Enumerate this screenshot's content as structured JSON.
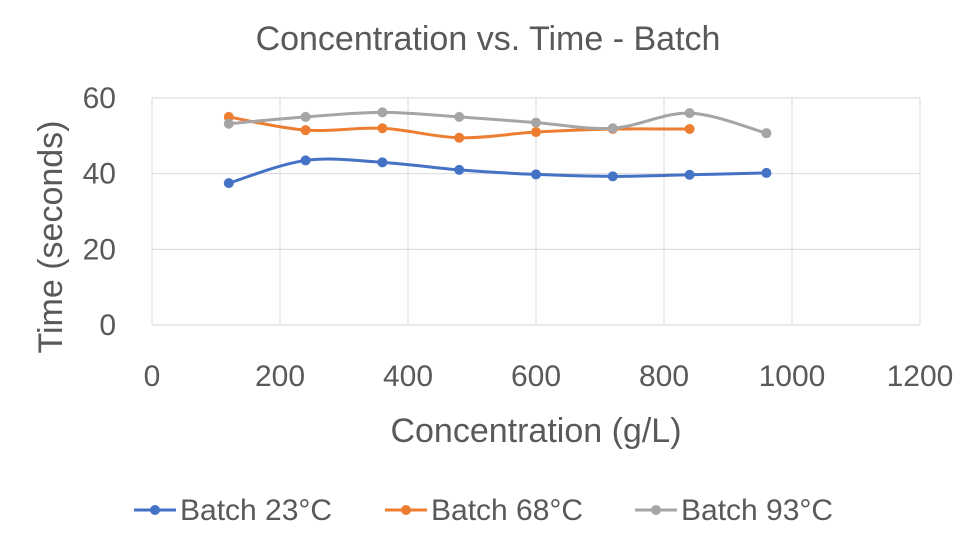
{
  "chart_data": {
    "type": "line",
    "smooth": true,
    "title": "Concentration vs. Time - Batch",
    "xlabel": "Concentration (g/L)",
    "ylabel": "Time (seconds)",
    "xlim": [
      0,
      1200
    ],
    "ylim": [
      0,
      60
    ],
    "xticks": [
      "0",
      "200",
      "400",
      "600",
      "800",
      "1000",
      "1200"
    ],
    "yticks": [
      "0",
      "20",
      "40",
      "60"
    ],
    "grid": true,
    "legend_position": "bottom",
    "series": [
      {
        "name": "Batch 23°C",
        "color": "#4472C4",
        "x": [
          120,
          240,
          360,
          480,
          600,
          720,
          840,
          960
        ],
        "y": [
          37.5,
          43.5,
          43,
          41,
          39.8,
          39.3,
          39.7,
          40.2
        ]
      },
      {
        "name": "Batch 68°C",
        "color": "#ED7D31",
        "x": [
          120,
          240,
          360,
          480,
          600,
          720,
          840
        ],
        "y": [
          55,
          51.5,
          52,
          49.5,
          51,
          51.8,
          51.8
        ]
      },
      {
        "name": "Batch 93°C",
        "color": "#A5A5A5",
        "x": [
          120,
          240,
          360,
          480,
          600,
          720,
          840,
          960
        ],
        "y": [
          53.2,
          55,
          56.2,
          55,
          53.5,
          52,
          56,
          50.7
        ]
      }
    ]
  }
}
